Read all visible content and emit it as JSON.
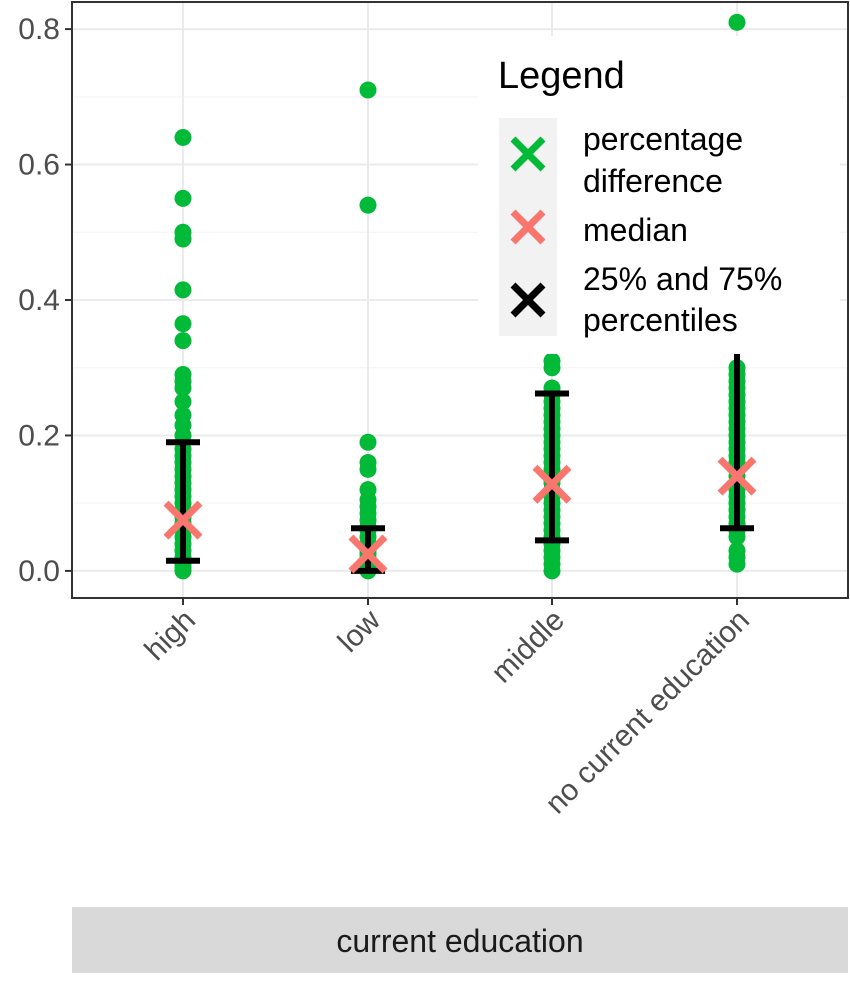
{
  "chart_data": {
    "type": "scatter",
    "categories": [
      "high",
      "low",
      "middle",
      "no current education"
    ],
    "ylim": [
      -0.04,
      0.84
    ],
    "yticks": [
      0.0,
      0.2,
      0.4,
      0.6,
      0.8
    ],
    "ytick_labels": [
      "0.0",
      "0.2",
      "0.4",
      "0.6",
      "0.8"
    ],
    "grid": true,
    "legend_position": "top-right",
    "strip_label": "current education",
    "series": [
      {
        "name": "percentage difference",
        "color": "#00ba38",
        "marker": "point",
        "values": [
          [
            0.0,
            0.005,
            0.01,
            0.015,
            0.02,
            0.03,
            0.04,
            0.05,
            0.06,
            0.07,
            0.08,
            0.09,
            0.1,
            0.11,
            0.12,
            0.13,
            0.14,
            0.15,
            0.16,
            0.17,
            0.18,
            0.2,
            0.215,
            0.23,
            0.25,
            0.27,
            0.28,
            0.29,
            0.34,
            0.365,
            0.415,
            0.49,
            0.5,
            0.55,
            0.64
          ],
          [
            0.0,
            0.005,
            0.01,
            0.015,
            0.02,
            0.025,
            0.03,
            0.04,
            0.05,
            0.06,
            0.065,
            0.075,
            0.085,
            0.095,
            0.105,
            0.12,
            0.15,
            0.16,
            0.19,
            0.54,
            0.71
          ],
          [
            0.0,
            0.01,
            0.02,
            0.03,
            0.04,
            0.05,
            0.06,
            0.07,
            0.08,
            0.09,
            0.1,
            0.11,
            0.12,
            0.13,
            0.14,
            0.15,
            0.16,
            0.17,
            0.18,
            0.19,
            0.2,
            0.21,
            0.22,
            0.23,
            0.24,
            0.25,
            0.26,
            0.27,
            0.3,
            0.31
          ],
          [
            0.01,
            0.02,
            0.03,
            0.05,
            0.06,
            0.07,
            0.08,
            0.09,
            0.1,
            0.11,
            0.12,
            0.13,
            0.14,
            0.15,
            0.16,
            0.17,
            0.18,
            0.19,
            0.2,
            0.21,
            0.22,
            0.23,
            0.24,
            0.25,
            0.26,
            0.27,
            0.28,
            0.29,
            0.3,
            0.81
          ]
        ]
      },
      {
        "name": "median",
        "color": "#f8766d",
        "marker": "x",
        "values": [
          0.075,
          0.025,
          0.128,
          0.14
        ]
      },
      {
        "name": "25% and 75% percentiles",
        "color": "#000000",
        "marker": "errorbar",
        "lower": [
          0.015,
          0.0,
          0.045,
          0.063
        ],
        "upper": [
          0.19,
          0.063,
          0.262,
          0.33
        ]
      }
    ],
    "legend": {
      "title": "Legend",
      "entries": [
        {
          "lines": [
            "percentage",
            "difference"
          ],
          "color": "#00ba38"
        },
        {
          "lines": [
            "median"
          ],
          "color": "#f8766d"
        },
        {
          "lines": [
            "25% and 75%",
            "percentiles"
          ],
          "color": "#000000"
        }
      ]
    }
  }
}
